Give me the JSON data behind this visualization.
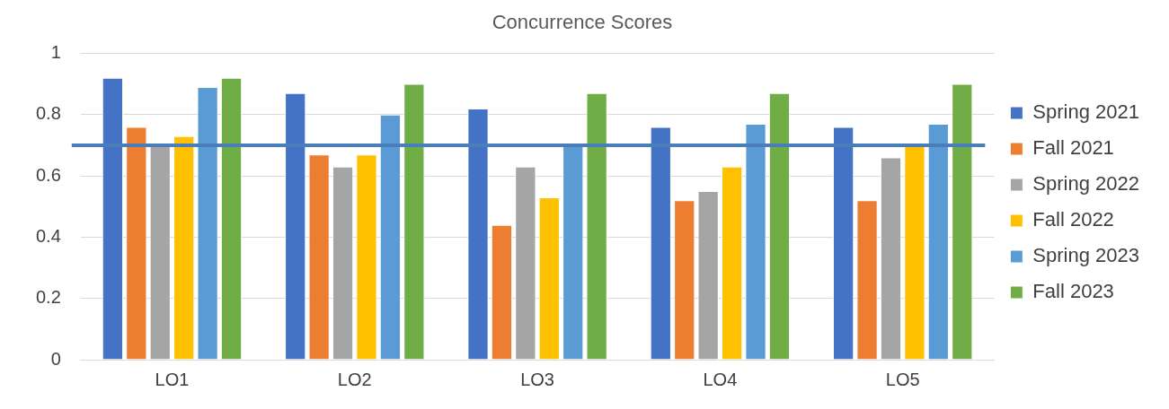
{
  "chart_data": {
    "type": "bar",
    "title": "Concurrence Scores",
    "categories": [
      "LO1",
      "LO2",
      "LO3",
      "LO4",
      "LO5"
    ],
    "series": [
      {
        "name": "Spring 2021",
        "color": "#4472c4",
        "values": [
          0.92,
          0.87,
          0.82,
          0.76,
          0.76
        ]
      },
      {
        "name": "Fall 2021",
        "color": "#ed7d31",
        "values": [
          0.76,
          0.67,
          0.44,
          0.52,
          0.52
        ]
      },
      {
        "name": "Spring 2022",
        "color": "#a5a5a5",
        "values": [
          0.7,
          0.63,
          0.63,
          0.55,
          0.66
        ]
      },
      {
        "name": "Fall 2022",
        "color": "#ffc000",
        "values": [
          0.73,
          0.67,
          0.53,
          0.63,
          0.7
        ]
      },
      {
        "name": "Spring 2023",
        "color": "#5b9bd5",
        "values": [
          0.89,
          0.8,
          0.7,
          0.77,
          0.77
        ]
      },
      {
        "name": "Fall 2023",
        "color": "#70ad47",
        "values": [
          0.92,
          0.9,
          0.87,
          0.87,
          0.9
        ]
      }
    ],
    "ylim": [
      0,
      1
    ],
    "yticks": [
      0,
      0.2,
      0.4,
      0.6,
      0.8,
      1
    ],
    "grid": "y",
    "legend": "right",
    "ref_lines": [
      {
        "axis": "y",
        "value": 0.7,
        "color": "#4a7ebb"
      }
    ]
  }
}
